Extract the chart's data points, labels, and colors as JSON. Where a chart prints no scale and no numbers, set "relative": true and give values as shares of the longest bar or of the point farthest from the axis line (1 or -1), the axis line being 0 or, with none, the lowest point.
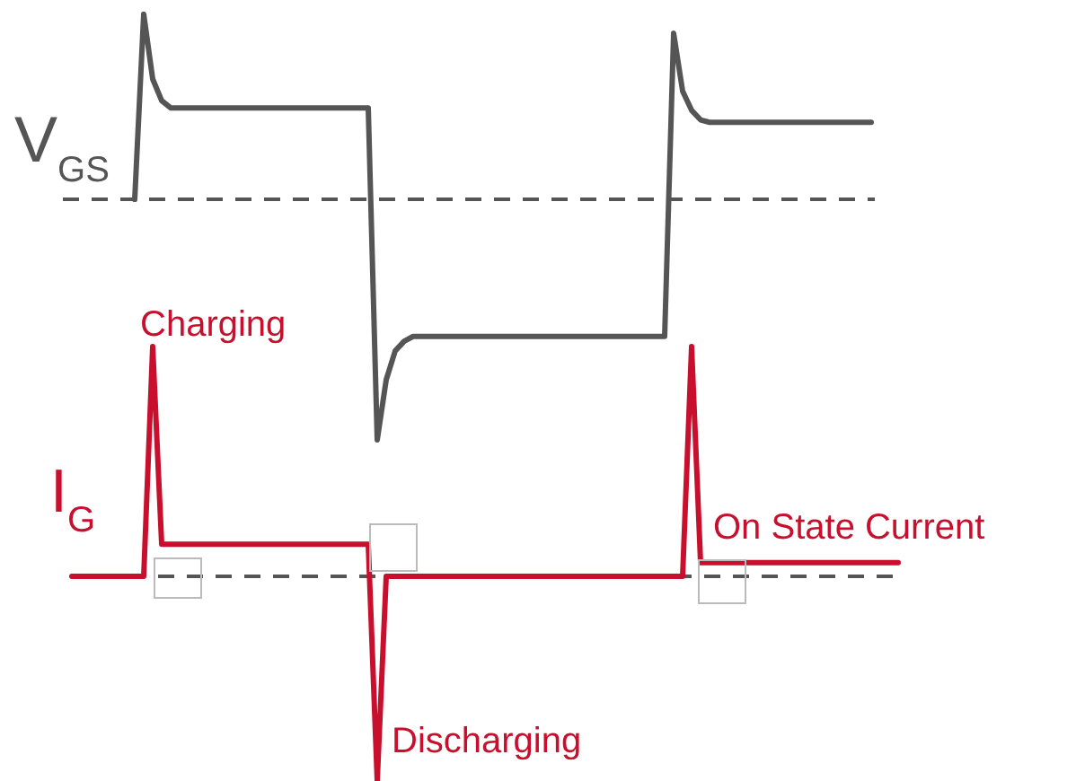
{
  "chart_data": [
    {
      "type": "line",
      "relative": true,
      "ylabel": "V$_{GS}$",
      "color": "#555555",
      "line_style": "solid",
      "ref_lines": [
        {
          "axis": "y",
          "value": 0,
          "color": "#555555",
          "line_style": "dashed"
        }
      ],
      "categories": [
        null,
        null,
        null,
        null,
        null,
        null,
        null,
        null,
        null,
        null,
        null,
        null,
        null,
        null,
        null,
        null,
        null,
        null,
        null,
        null,
        null,
        null,
        null,
        null,
        null,
        null,
        null,
        null,
        null,
        null,
        null,
        null,
        null,
        null,
        null,
        null,
        null,
        null,
        null,
        null,
        null,
        null,
        null,
        null,
        null,
        null,
        null,
        null,
        null,
        null,
        null,
        null,
        null,
        null,
        null,
        null,
        null,
        null,
        null,
        null,
        null,
        null,
        null,
        null,
        null,
        null,
        null,
        null,
        null,
        null,
        null,
        null,
        null,
        null,
        null,
        null,
        null,
        null,
        null,
        null,
        null,
        null,
        null,
        null,
        null,
        null,
        null,
        null,
        null,
        null,
        null
      ],
      "values": [
        null,
        null,
        null,
        null,
        null,
        null,
        null,
        null,
        0,
        0.77,
        0.5,
        0.41,
        0.38,
        0.38,
        0.38,
        0.38,
        0.38,
        0.38,
        0.38,
        0.38,
        0.38,
        0.38,
        0.38,
        0.38,
        0.38,
        0.38,
        0.38,
        0.38,
        0.38,
        0.38,
        0.38,
        0.38,
        0.38,
        0.38,
        0.38,
        -1,
        -0.75,
        -0.63,
        -0.59,
        -0.57,
        -0.57,
        -0.57,
        -0.57,
        -0.57,
        -0.57,
        -0.57,
        -0.57,
        -0.57,
        -0.57,
        -0.57,
        -0.57,
        -0.57,
        -0.57,
        -0.57,
        -0.57,
        -0.57,
        -0.57,
        -0.57,
        -0.57,
        -0.57,
        -0.57,
        -0.57,
        -0.57,
        -0.57,
        -0.57,
        -0.57,
        -0.57,
        -0.57,
        0.69,
        0.45,
        0.37,
        0.33,
        0.32,
        0.32,
        0.32,
        0.32,
        0.32,
        0.32,
        0.32,
        0.32,
        0.32,
        0.32,
        0.32,
        0.32,
        0.32,
        0.32,
        0.32,
        0.32,
        0.32,
        0.32,
        0.32
      ]
    },
    {
      "type": "line",
      "relative": true,
      "ylabel": "I$_{G}$",
      "color": "#c8102e",
      "line_style": "solid",
      "ref_lines": [
        {
          "axis": "y",
          "value": 0,
          "color": "#555555",
          "line_style": "dashed"
        }
      ],
      "annotations": [
        "Charging",
        "Discharging",
        "On State Current"
      ],
      "categories": [
        null,
        null,
        null,
        null,
        null,
        null,
        null,
        null,
        null,
        null,
        null,
        null,
        null,
        null,
        null,
        null,
        null,
        null,
        null,
        null,
        null,
        null,
        null,
        null,
        null,
        null,
        null,
        null,
        null,
        null,
        null,
        null,
        null,
        null,
        null,
        null,
        null,
        null,
        null,
        null,
        null,
        null,
        null,
        null,
        null,
        null,
        null,
        null,
        null,
        null,
        null,
        null,
        null,
        null,
        null,
        null,
        null,
        null,
        null,
        null,
        null,
        null,
        null,
        null,
        null,
        null,
        null,
        null,
        null,
        null,
        null,
        null,
        null,
        null,
        null,
        null,
        null,
        null,
        null,
        null,
        null,
        null,
        null,
        null,
        null,
        null,
        null,
        null,
        null,
        null,
        null,
        null,
        null
      ],
      "values": [
        0,
        0,
        0,
        0,
        0,
        0,
        0,
        0,
        0,
        1,
        0.14,
        0.14,
        0.14,
        0.14,
        0.14,
        0.14,
        0.14,
        0.14,
        0.14,
        0.14,
        0.14,
        0.14,
        0.14,
        0.14,
        0.14,
        0.14,
        0.14,
        0.14,
        0.14,
        0.14,
        0.14,
        0.14,
        0.14,
        0.14,
        -0.89,
        0,
        0,
        0,
        0,
        0,
        0,
        0,
        0,
        0,
        0,
        0,
        0,
        0,
        0,
        0,
        0,
        0,
        0,
        0,
        0,
        0,
        0,
        0,
        0,
        0,
        0,
        0,
        0,
        0,
        0,
        0,
        0,
        0,
        0,
        1,
        0.06,
        0.06,
        0.06,
        0.06,
        0.06,
        0.06,
        0.06,
        0.06,
        0.06,
        0.06,
        0.06,
        0.06,
        0.06,
        0.06,
        0.06,
        0.06,
        0.06,
        0.06,
        0.06,
        0.06,
        0.06,
        0.06,
        0.06
      ]
    }
  ]
}
